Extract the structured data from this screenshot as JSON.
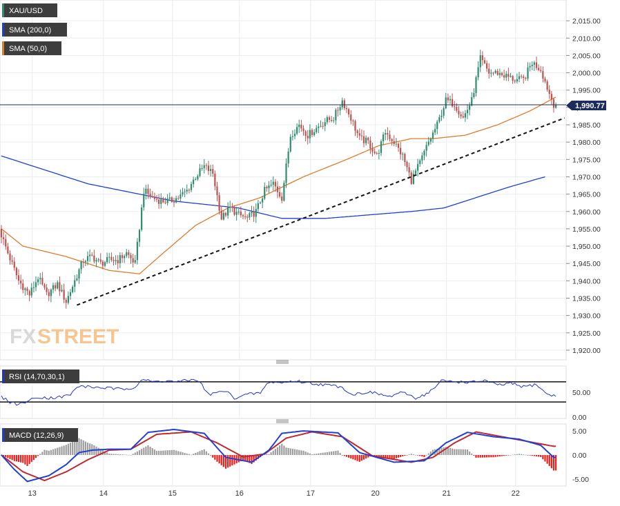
{
  "price_panel": {
    "symbol": "XAU/USD",
    "sma200_label": "SMA (200,0)",
    "sma50_label": "SMA (50,0)",
    "last_price_label": "1,990.77",
    "watermark_fx": "FX",
    "watermark_street": "STREET",
    "y_ticks": [
      "2,015.00",
      "2,010.00",
      "2,005.00",
      "2,000.00",
      "1,995.00",
      "1,990.00",
      "1,985.00",
      "1,980.00",
      "1,975.00",
      "1,970.00",
      "1,965.00",
      "1,960.00",
      "1,955.00",
      "1,950.00",
      "1,945.00",
      "1,940.00",
      "1,935.00",
      "1,930.00",
      "1,925.00",
      "1,920.00"
    ]
  },
  "rsi_panel": {
    "label": "RSI (14,70,30,1)",
    "y_ticks": [
      "50.00",
      "0.00"
    ]
  },
  "macd_panel": {
    "label": "MACD (12,26,9)",
    "y_ticks": [
      "5.00",
      "0.00",
      "-5.00"
    ]
  },
  "x_ticks": [
    "13",
    "14",
    "15",
    "16",
    "17",
    "20",
    "21",
    "22"
  ],
  "colors": {
    "up": "#2e8b6e",
    "down": "#c0504d",
    "sma200": "#1f3fd6",
    "sma50": "#e07b2a",
    "rsi": "#2233cc",
    "macd": "#1f3fd6",
    "signal": "#c0282d",
    "hist_pos": "#9e9e9e",
    "hist_neg": "#e8201c",
    "label_bg": "#3d3d3d"
  },
  "chart_data": [
    {
      "type": "candlestick",
      "title": "XAU/USD",
      "x_labels": [
        "13",
        "14",
        "15",
        "16",
        "17",
        "20",
        "21",
        "22"
      ],
      "ylim": [
        1918,
        2020
      ],
      "grid": true,
      "legend": "top-left",
      "last_price": 1990.77,
      "anchors": [
        [
          0,
          1955
        ],
        [
          4,
          1948
        ],
        [
          9,
          1940
        ],
        [
          14,
          1936
        ],
        [
          18,
          1941
        ],
        [
          22,
          1936
        ],
        [
          27,
          1939
        ],
        [
          31,
          1934
        ],
        [
          35,
          1940
        ],
        [
          39,
          1946
        ],
        [
          43,
          1947
        ],
        [
          47,
          1945
        ],
        [
          51,
          1946
        ],
        [
          55,
          1946
        ],
        [
          59,
          1948
        ],
        [
          63,
          1945
        ],
        [
          67,
          1966
        ],
        [
          71,
          1964
        ],
        [
          75,
          1963
        ],
        [
          79,
          1963
        ],
        [
          83,
          1964
        ],
        [
          87,
          1966
        ],
        [
          91,
          1970
        ],
        [
          95,
          1973
        ],
        [
          99,
          1971
        ],
        [
          103,
          1958
        ],
        [
          107,
          1961
        ],
        [
          111,
          1959
        ],
        [
          115,
          1958
        ],
        [
          119,
          1960
        ],
        [
          123,
          1966
        ],
        [
          127,
          1968
        ],
        [
          131,
          1964
        ],
        [
          135,
          1982
        ],
        [
          139,
          1985
        ],
        [
          143,
          1982
        ],
        [
          147,
          1984
        ],
        [
          151,
          1986
        ],
        [
          155,
          1987
        ],
        [
          159,
          1992
        ],
        [
          163,
          1987
        ],
        [
          167,
          1981
        ],
        [
          171,
          1980
        ],
        [
          175,
          1976
        ],
        [
          179,
          1983
        ],
        [
          183,
          1980
        ],
        [
          187,
          1976
        ],
        [
          191,
          1969
        ],
        [
          195,
          1974
        ],
        [
          199,
          1980
        ],
        [
          203,
          1985
        ],
        [
          207,
          1992
        ],
        [
          211,
          1991
        ],
        [
          215,
          1987
        ],
        [
          219,
          1992
        ],
        [
          223,
          2004
        ],
        [
          227,
          2000
        ],
        [
          231,
          2000
        ],
        [
          235,
          1999
        ],
        [
          239,
          1998
        ],
        [
          243,
          1998
        ],
        [
          247,
          2003
        ],
        [
          251,
          2001
        ],
        [
          255,
          1994
        ],
        [
          257,
          1991
        ]
      ],
      "sma200": [
        [
          0,
          1976
        ],
        [
          40,
          1968
        ],
        [
          80,
          1963
        ],
        [
          110,
          1961
        ],
        [
          130,
          1958
        ],
        [
          150,
          1958
        ],
        [
          170,
          1959
        ],
        [
          190,
          1960
        ],
        [
          205,
          1961
        ],
        [
          220,
          1964
        ],
        [
          235,
          1967
        ],
        [
          252,
          1970
        ]
      ],
      "sma50": [
        [
          0,
          1955
        ],
        [
          10,
          1950
        ],
        [
          30,
          1947
        ],
        [
          50,
          1943
        ],
        [
          64,
          1942
        ],
        [
          75,
          1948
        ],
        [
          90,
          1956
        ],
        [
          105,
          1961
        ],
        [
          120,
          1964
        ],
        [
          140,
          1970
        ],
        [
          160,
          1975
        ],
        [
          175,
          1979
        ],
        [
          190,
          1981
        ],
        [
          200,
          1981
        ],
        [
          215,
          1982
        ],
        [
          230,
          1985
        ],
        [
          245,
          1989
        ],
        [
          257,
          1993
        ]
      ],
      "trendline": {
        "from": [
          35,
          1933
        ],
        "to": [
          257,
          1986
        ]
      },
      "ref_line": 1990.77
    },
    {
      "type": "line",
      "title": "RSI (14,70,30,1)",
      "ylim": [
        0,
        100
      ],
      "levels": [
        70,
        30
      ],
      "values": [
        [
          0,
          40
        ],
        [
          4,
          30
        ],
        [
          8,
          25
        ],
        [
          14,
          35
        ],
        [
          18,
          40
        ],
        [
          22,
          38
        ],
        [
          28,
          40
        ],
        [
          32,
          45
        ],
        [
          36,
          62
        ],
        [
          40,
          60
        ],
        [
          48,
          58
        ],
        [
          56,
          55
        ],
        [
          62,
          60
        ],
        [
          65,
          75
        ],
        [
          70,
          70
        ],
        [
          76,
          72
        ],
        [
          82,
          70
        ],
        [
          88,
          74
        ],
        [
          92,
          72
        ],
        [
          94,
          55
        ],
        [
          96,
          45
        ],
        [
          104,
          52
        ],
        [
          108,
          38
        ],
        [
          114,
          45
        ],
        [
          120,
          48
        ],
        [
          124,
          70
        ],
        [
          130,
          68
        ],
        [
          136,
          72
        ],
        [
          142,
          68
        ],
        [
          148,
          65
        ],
        [
          154,
          62
        ],
        [
          158,
          60
        ],
        [
          162,
          45
        ],
        [
          166,
          47
        ],
        [
          170,
          50
        ],
        [
          176,
          45
        ],
        [
          180,
          40
        ],
        [
          184,
          48
        ],
        [
          188,
          46
        ],
        [
          192,
          38
        ],
        [
          196,
          44
        ],
        [
          200,
          55
        ],
        [
          204,
          72
        ],
        [
          212,
          70
        ],
        [
          218,
          69
        ],
        [
          224,
          73
        ],
        [
          230,
          63
        ],
        [
          236,
          67
        ],
        [
          242,
          60
        ],
        [
          248,
          65
        ],
        [
          252,
          48
        ],
        [
          256,
          42
        ]
      ]
    },
    {
      "type": "line",
      "title": "MACD (12,26,9)",
      "ylim": [
        -6.3,
        6.3
      ],
      "series": [
        {
          "name": "MACD",
          "values": [
            [
              0,
              0
            ],
            [
              6,
              -3
            ],
            [
              12,
              -5.5
            ],
            [
              22,
              -4.3
            ],
            [
              30,
              -2
            ],
            [
              36,
              0.5
            ],
            [
              42,
              1
            ],
            [
              50,
              1.2
            ],
            [
              60,
              1.2
            ],
            [
              68,
              4.7
            ],
            [
              80,
              5.3
            ],
            [
              94,
              4.5
            ],
            [
              104,
              -0.5
            ],
            [
              116,
              -1.5
            ],
            [
              124,
              1
            ],
            [
              130,
              4.5
            ],
            [
              140,
              5.0
            ],
            [
              156,
              4.6
            ],
            [
              166,
              0.5
            ],
            [
              182,
              -1.5
            ],
            [
              196,
              -1.2
            ],
            [
              206,
              2.5
            ],
            [
              216,
              4.7
            ],
            [
              228,
              3.8
            ],
            [
              240,
              3.3
            ],
            [
              250,
              2.0
            ],
            [
              256,
              -0.5
            ]
          ]
        },
        {
          "name": "Signal",
          "values": [
            [
              0,
              0
            ],
            [
              10,
              -3.5
            ],
            [
              20,
              -5.3
            ],
            [
              30,
              -3.5
            ],
            [
              40,
              -1.0
            ],
            [
              50,
              1.0
            ],
            [
              60,
              1.2
            ],
            [
              72,
              4.3
            ],
            [
              88,
              4.8
            ],
            [
              100,
              2.5
            ],
            [
              112,
              -0.4
            ],
            [
              122,
              0.2
            ],
            [
              132,
              3.5
            ],
            [
              144,
              4.8
            ],
            [
              158,
              3.8
            ],
            [
              172,
              -0.2
            ],
            [
              190,
              -1.5
            ],
            [
              200,
              -0.5
            ],
            [
              210,
              2.5
            ],
            [
              220,
              4.8
            ],
            [
              232,
              3.8
            ],
            [
              244,
              2.8
            ],
            [
              256,
              1.8
            ]
          ]
        }
      ]
    }
  ]
}
